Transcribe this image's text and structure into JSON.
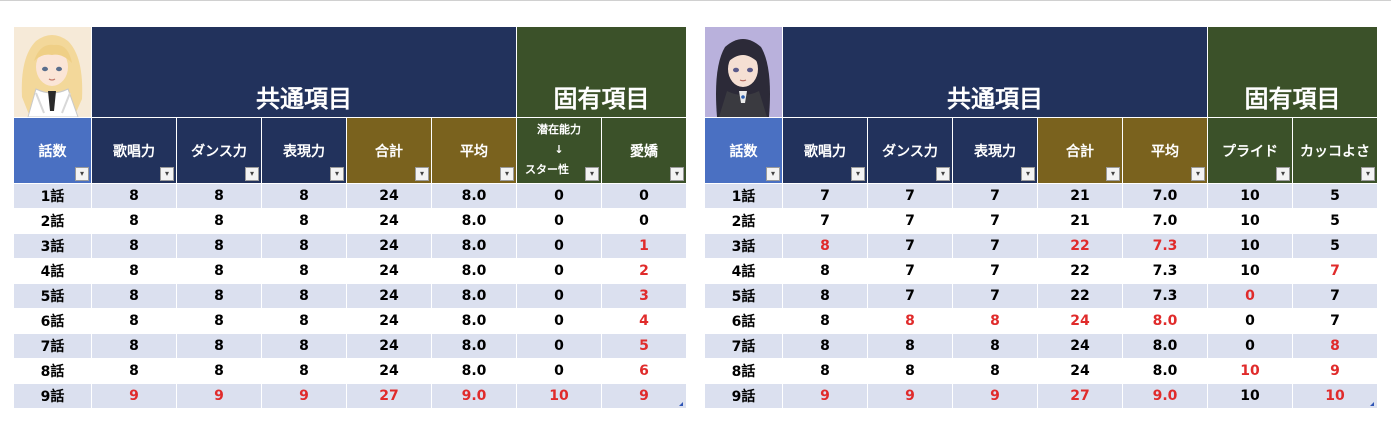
{
  "tables": [
    {
      "id": "left",
      "avatar": "blonde-hair-white-dress-character-portrait",
      "common_title": "共通項目",
      "unique_title": "固有項目",
      "headers": [
        "話数",
        "歌唱力",
        "ダンス力",
        "表現力",
        "合計",
        "平均",
        "潜在能力",
        "↓",
        "スター性",
        "愛嬌"
      ],
      "rows": [
        [
          "1話",
          "8",
          "8",
          "8",
          "24",
          "8.0",
          "0",
          "0"
        ],
        [
          "2話",
          "8",
          "8",
          "8",
          "24",
          "8.0",
          "0",
          "0"
        ],
        [
          "3話",
          "8",
          "8",
          "8",
          "24",
          "8.0",
          "0",
          "1"
        ],
        [
          "4話",
          "8",
          "8",
          "8",
          "24",
          "8.0",
          "0",
          "2"
        ],
        [
          "5話",
          "8",
          "8",
          "8",
          "24",
          "8.0",
          "0",
          "3"
        ],
        [
          "6話",
          "8",
          "8",
          "8",
          "24",
          "8.0",
          "0",
          "4"
        ],
        [
          "7話",
          "8",
          "8",
          "8",
          "24",
          "8.0",
          "0",
          "5"
        ],
        [
          "8話",
          "8",
          "8",
          "8",
          "24",
          "8.0",
          "0",
          "6"
        ],
        [
          "9話",
          "9",
          "9",
          "9",
          "27",
          "9.0",
          "10",
          "9"
        ]
      ],
      "highlights": [
        [
          2,
          7
        ],
        [
          3,
          7
        ],
        [
          4,
          7
        ],
        [
          5,
          7
        ],
        [
          6,
          7
        ],
        [
          7,
          7
        ],
        [
          8,
          1
        ],
        [
          8,
          2
        ],
        [
          8,
          3
        ],
        [
          8,
          4
        ],
        [
          8,
          5
        ],
        [
          8,
          6
        ],
        [
          8,
          7
        ]
      ]
    },
    {
      "id": "right",
      "avatar": "dark-hair-black-uniform-character-portrait",
      "common_title": "共通項目",
      "unique_title": "固有項目",
      "headers": [
        "話数",
        "歌唱力",
        "ダンス力",
        "表現力",
        "合計",
        "平均",
        "プライド",
        "カッコよさ"
      ],
      "rows": [
        [
          "1話",
          "7",
          "7",
          "7",
          "21",
          "7.0",
          "10",
          "5"
        ],
        [
          "2話",
          "7",
          "7",
          "7",
          "21",
          "7.0",
          "10",
          "5"
        ],
        [
          "3話",
          "8",
          "7",
          "7",
          "22",
          "7.3",
          "10",
          "5"
        ],
        [
          "4話",
          "8",
          "7",
          "7",
          "22",
          "7.3",
          "10",
          "7"
        ],
        [
          "5話",
          "8",
          "7",
          "7",
          "22",
          "7.3",
          "0",
          "7"
        ],
        [
          "6話",
          "8",
          "8",
          "8",
          "24",
          "8.0",
          "0",
          "7"
        ],
        [
          "7話",
          "8",
          "8",
          "8",
          "24",
          "8.0",
          "0",
          "8"
        ],
        [
          "8話",
          "8",
          "8",
          "8",
          "24",
          "8.0",
          "10",
          "9"
        ],
        [
          "9話",
          "9",
          "9",
          "9",
          "27",
          "9.0",
          "10",
          "10"
        ]
      ],
      "highlights": [
        [
          2,
          1
        ],
        [
          2,
          4
        ],
        [
          2,
          5
        ],
        [
          3,
          7
        ],
        [
          4,
          6
        ],
        [
          5,
          2
        ],
        [
          5,
          3
        ],
        [
          5,
          4
        ],
        [
          5,
          5
        ],
        [
          6,
          7
        ],
        [
          7,
          6
        ],
        [
          7,
          7
        ],
        [
          8,
          1
        ],
        [
          8,
          2
        ],
        [
          8,
          3
        ],
        [
          8,
          4
        ],
        [
          8,
          5
        ],
        [
          8,
          7
        ]
      ]
    }
  ],
  "colors": {
    "navy": "#22325c",
    "green": "#3b5129",
    "brown": "#7a621e",
    "blue": "#4a70c2",
    "row_tint": "#dbe0ef",
    "highlight_red": "#e02b2b"
  }
}
